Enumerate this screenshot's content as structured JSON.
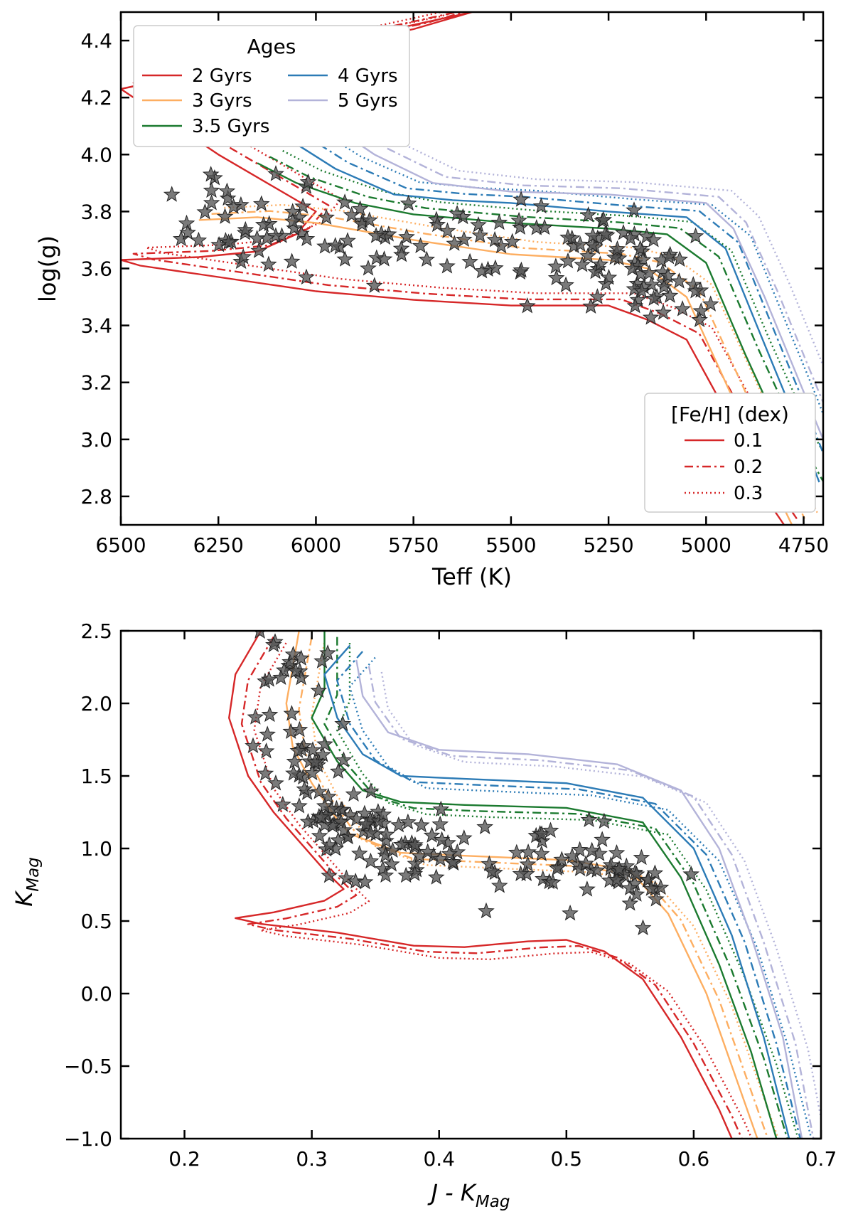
{
  "colors": {
    "2": "#d62728",
    "3": "#fdae61",
    "3.5": "#1b7a2f",
    "4": "#2c7bb6",
    "5": "#b3b3d9",
    "stars": "#555555",
    "metal_legend": "#d62728"
  },
  "chart_data": [
    {
      "type": "scatter",
      "name": "hr-diagram",
      "xlabel": "Teff (K)",
      "ylabel": "log(g)",
      "xlim": [
        6500,
        4700
      ],
      "ylim": [
        4.5,
        2.7
      ],
      "xticks": [
        6500,
        6250,
        6000,
        5750,
        5500,
        5250,
        5000,
        4750
      ],
      "yticks": [
        2.8,
        3.0,
        3.2,
        3.4,
        3.6,
        3.8,
        4.0,
        4.2,
        4.4
      ],
      "xtick_labels": [
        "6500",
        "6250",
        "6000",
        "5750",
        "5500",
        "5250",
        "5000",
        "4750"
      ],
      "ytick_labels": [
        "2.8",
        "3.0",
        "3.2",
        "3.4",
        "3.6",
        "3.8",
        "4.0",
        "4.2",
        "4.4"
      ],
      "legend_ages": {
        "title": "Ages",
        "entries": [
          {
            "label": "2 Gyrs",
            "age": "2"
          },
          {
            "label": "3 Gyrs",
            "age": "3"
          },
          {
            "label": "3.5 Gyrs",
            "age": "3.5"
          },
          {
            "label": "4 Gyrs",
            "age": "4"
          },
          {
            "label": "5 Gyrs",
            "age": "5"
          }
        ]
      },
      "legend_metal": {
        "title": "[Fe/H] (dex)",
        "entries": [
          {
            "label": "0.1",
            "style": "solid"
          },
          {
            "label": "0.2",
            "style": "dashdot"
          },
          {
            "label": "0.3",
            "style": "dotted"
          }
        ]
      },
      "isochrones": [
        {
          "age": "2",
          "points": [
            [
              6500,
              4.23
            ],
            [
              6000,
              4.37
            ],
            [
              5750,
              4.44
            ],
            [
              5600,
              4.5
            ],
            [
              6500,
              4.23
            ],
            [
              6250,
              4.0
            ],
            [
              6000,
              3.8
            ],
            [
              6050,
              3.72
            ],
            [
              6150,
              3.66
            ],
            [
              6300,
              3.64
            ],
            [
              6500,
              3.63
            ],
            [
              6450,
              3.61
            ],
            [
              6300,
              3.58
            ],
            [
              6000,
              3.52
            ],
            [
              5750,
              3.49
            ],
            [
              5500,
              3.47
            ],
            [
              5250,
              3.47
            ],
            [
              5150,
              3.42
            ],
            [
              5050,
              3.35
            ],
            [
              4950,
              3.1
            ],
            [
              4850,
              2.8
            ],
            [
              4800,
              2.7
            ]
          ]
        },
        {
          "age": "3",
          "points": [
            [
              6300,
              3.77
            ],
            [
              6150,
              3.78
            ],
            [
              6000,
              3.76
            ],
            [
              5750,
              3.7
            ],
            [
              5500,
              3.65
            ],
            [
              5250,
              3.63
            ],
            [
              5150,
              3.6
            ],
            [
              5050,
              3.5
            ],
            [
              4950,
              3.2
            ],
            [
              4850,
              2.9
            ],
            [
              4780,
              2.7
            ]
          ]
        },
        {
          "age": "3.5",
          "points": [
            [
              6150,
              3.97
            ],
            [
              6050,
              3.9
            ],
            [
              5900,
              3.83
            ],
            [
              5750,
              3.79
            ],
            [
              5500,
              3.76
            ],
            [
              5250,
              3.74
            ],
            [
              5100,
              3.72
            ],
            [
              5000,
              3.62
            ],
            [
              4900,
              3.3
            ],
            [
              4800,
              3.0
            ],
            [
              4720,
              2.8
            ]
          ]
        },
        {
          "age": "4",
          "points": [
            [
              6100,
              4.08
            ],
            [
              5950,
              3.95
            ],
            [
              5800,
              3.86
            ],
            [
              5650,
              3.84
            ],
            [
              5500,
              3.83
            ],
            [
              5250,
              3.8
            ],
            [
              5050,
              3.78
            ],
            [
              4950,
              3.67
            ],
            [
              4870,
              3.4
            ],
            [
              4780,
              3.1
            ],
            [
              4710,
              2.85
            ]
          ]
        },
        {
          "age": "5",
          "points": [
            [
              6000,
              4.14
            ],
            [
              5850,
              4.0
            ],
            [
              5700,
              3.9
            ],
            [
              5500,
              3.87
            ],
            [
              5250,
              3.86
            ],
            [
              5000,
              3.83
            ],
            [
              4930,
              3.74
            ],
            [
              4850,
              3.5
            ],
            [
              4760,
              3.2
            ],
            [
              4700,
              3.0
            ]
          ]
        }
      ]
    },
    {
      "type": "scatter",
      "name": "cm-diagram",
      "xlabel": "J - K",
      "xlabel_sub": "Mag",
      "ylabel": "K",
      "ylabel_sub": "Mag",
      "xlim": [
        0.15,
        0.7
      ],
      "ylim": [
        2.5,
        -1.0
      ],
      "xticks": [
        0.2,
        0.3,
        0.4,
        0.5,
        0.6,
        0.7
      ],
      "yticks": [
        -1.0,
        -0.5,
        0.0,
        0.5,
        1.0,
        1.5,
        2.0,
        2.5
      ],
      "xtick_labels": [
        "0.2",
        "0.3",
        "0.4",
        "0.5",
        "0.6",
        "0.7"
      ],
      "ytick_labels": [
        "−1.0",
        "−0.5",
        "0.0",
        "0.5",
        "1.0",
        "1.5",
        "2.0",
        "2.5"
      ],
      "isochrones": [
        {
          "age": "2",
          "points": [
            [
              0.26,
              2.5
            ],
            [
              0.24,
              2.2
            ],
            [
              0.235,
              1.9
            ],
            [
              0.25,
              1.5
            ],
            [
              0.27,
              1.25
            ],
            [
              0.29,
              1.05
            ],
            [
              0.31,
              0.85
            ],
            [
              0.325,
              0.72
            ],
            [
              0.31,
              0.64
            ],
            [
              0.27,
              0.56
            ],
            [
              0.24,
              0.52
            ],
            [
              0.26,
              0.48
            ],
            [
              0.32,
              0.42
            ],
            [
              0.38,
              0.33
            ],
            [
              0.42,
              0.32
            ],
            [
              0.47,
              0.36
            ],
            [
              0.5,
              0.37
            ],
            [
              0.53,
              0.29
            ],
            [
              0.56,
              0.1
            ],
            [
              0.59,
              -0.3
            ],
            [
              0.62,
              -0.8
            ],
            [
              0.63,
              -1.0
            ]
          ]
        },
        {
          "age": "3",
          "points": [
            [
              0.29,
              2.5
            ],
            [
              0.28,
              2.0
            ],
            [
              0.285,
              1.7
            ],
            [
              0.3,
              1.45
            ],
            [
              0.32,
              1.2
            ],
            [
              0.33,
              1.1
            ],
            [
              0.37,
              0.97
            ],
            [
              0.42,
              0.95
            ],
            [
              0.5,
              0.92
            ],
            [
              0.55,
              0.85
            ],
            [
              0.58,
              0.55
            ],
            [
              0.61,
              0.0
            ],
            [
              0.63,
              -0.5
            ],
            [
              0.65,
              -1.0
            ]
          ]
        },
        {
          "age": "3.5",
          "points": [
            [
              0.31,
              2.5
            ],
            [
              0.31,
              2.1
            ],
            [
              0.3,
              1.9
            ],
            [
              0.32,
              1.6
            ],
            [
              0.34,
              1.4
            ],
            [
              0.37,
              1.32
            ],
            [
              0.42,
              1.3
            ],
            [
              0.5,
              1.28
            ],
            [
              0.56,
              1.18
            ],
            [
              0.59,
              0.8
            ],
            [
              0.62,
              0.2
            ],
            [
              0.645,
              -0.4
            ],
            [
              0.665,
              -1.0
            ]
          ]
        },
        {
          "age": "4",
          "points": [
            [
              0.33,
              2.4
            ],
            [
              0.31,
              2.2
            ],
            [
              0.32,
              1.9
            ],
            [
              0.34,
              1.65
            ],
            [
              0.37,
              1.5
            ],
            [
              0.42,
              1.48
            ],
            [
              0.5,
              1.45
            ],
            [
              0.56,
              1.35
            ],
            [
              0.6,
              1.0
            ],
            [
              0.63,
              0.4
            ],
            [
              0.655,
              -0.3
            ],
            [
              0.675,
              -1.0
            ]
          ]
        },
        {
          "age": "5",
          "points": [
            [
              0.335,
              2.3
            ],
            [
              0.34,
              2.05
            ],
            [
              0.36,
              1.8
            ],
            [
              0.4,
              1.68
            ],
            [
              0.47,
              1.65
            ],
            [
              0.54,
              1.58
            ],
            [
              0.59,
              1.4
            ],
            [
              0.62,
              1.0
            ],
            [
              0.645,
              0.4
            ],
            [
              0.67,
              -0.3
            ],
            [
              0.685,
              -1.0
            ]
          ]
        }
      ]
    }
  ]
}
